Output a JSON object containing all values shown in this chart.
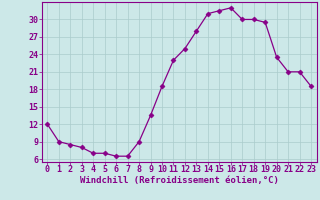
{
  "x": [
    0,
    1,
    2,
    3,
    4,
    5,
    6,
    7,
    8,
    9,
    10,
    11,
    12,
    13,
    14,
    15,
    16,
    17,
    18,
    19,
    20,
    21,
    22,
    23
  ],
  "y": [
    12,
    9,
    8.5,
    8,
    7,
    7,
    6.5,
    6.5,
    9,
    13.5,
    18.5,
    23,
    25,
    28,
    31,
    31.5,
    32,
    30,
    30,
    29.5,
    23.5,
    21,
    21,
    18.5
  ],
  "line_color": "#880088",
  "marker": "D",
  "marker_size": 2.5,
  "bg_color": "#cce8e8",
  "grid_color": "#aacccc",
  "xlabel": "Windchill (Refroidissement éolien,°C)",
  "xlabel_color": "#880088",
  "xlabel_fontsize": 6.5,
  "tick_color": "#880088",
  "tick_fontsize": 6,
  "ylim": [
    5.5,
    33
  ],
  "xlim": [
    -0.5,
    23.5
  ],
  "yticks": [
    6,
    9,
    12,
    15,
    18,
    21,
    24,
    27,
    30
  ],
  "xticks": [
    0,
    1,
    2,
    3,
    4,
    5,
    6,
    7,
    8,
    9,
    10,
    11,
    12,
    13,
    14,
    15,
    16,
    17,
    18,
    19,
    20,
    21,
    22,
    23
  ]
}
